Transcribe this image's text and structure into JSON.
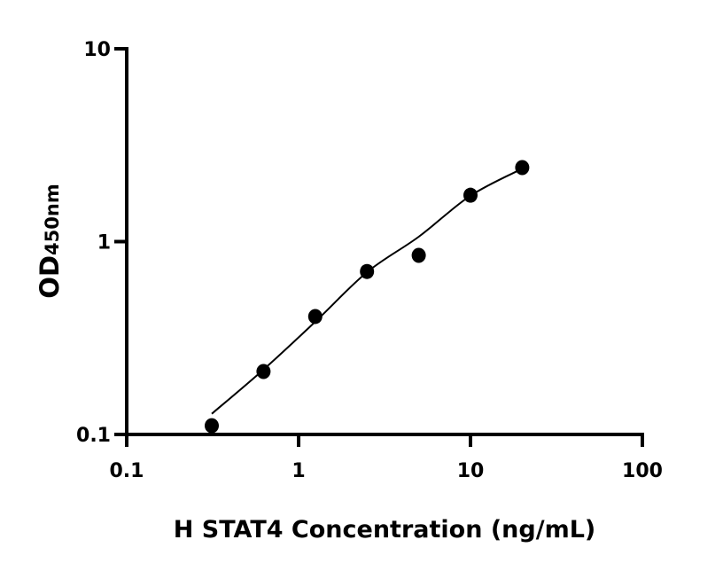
{
  "chart_data": {
    "type": "scatter",
    "title": "",
    "xlabel": "H STAT4 Concentration (ng/mL)",
    "ylabel_main": "OD",
    "ylabel_sub": "450nm",
    "x_scale": "log",
    "y_scale": "log",
    "xlim": [
      0.1,
      100
    ],
    "ylim": [
      0.1,
      10
    ],
    "x_ticks": [
      0.1,
      1,
      10,
      100
    ],
    "x_tick_labels": [
      "0.1",
      "1",
      "10",
      "100"
    ],
    "y_ticks": [
      0.1,
      1,
      10
    ],
    "y_tick_labels": [
      "0.1",
      "1",
      "10"
    ],
    "grid": false,
    "legend": "none",
    "marker_color": "#000000",
    "points": {
      "x": [
        0.3125,
        0.625,
        1.25,
        2.5,
        5,
        10,
        20
      ],
      "y": [
        0.111,
        0.212,
        0.409,
        0.7,
        0.849,
        1.74,
        2.42
      ]
    },
    "fit_curve": {
      "x": [
        0.3125,
        0.625,
        1.25,
        2.5,
        5,
        10,
        20
      ],
      "y": [
        0.128,
        0.217,
        0.384,
        0.694,
        1.06,
        1.73,
        2.39
      ]
    }
  }
}
